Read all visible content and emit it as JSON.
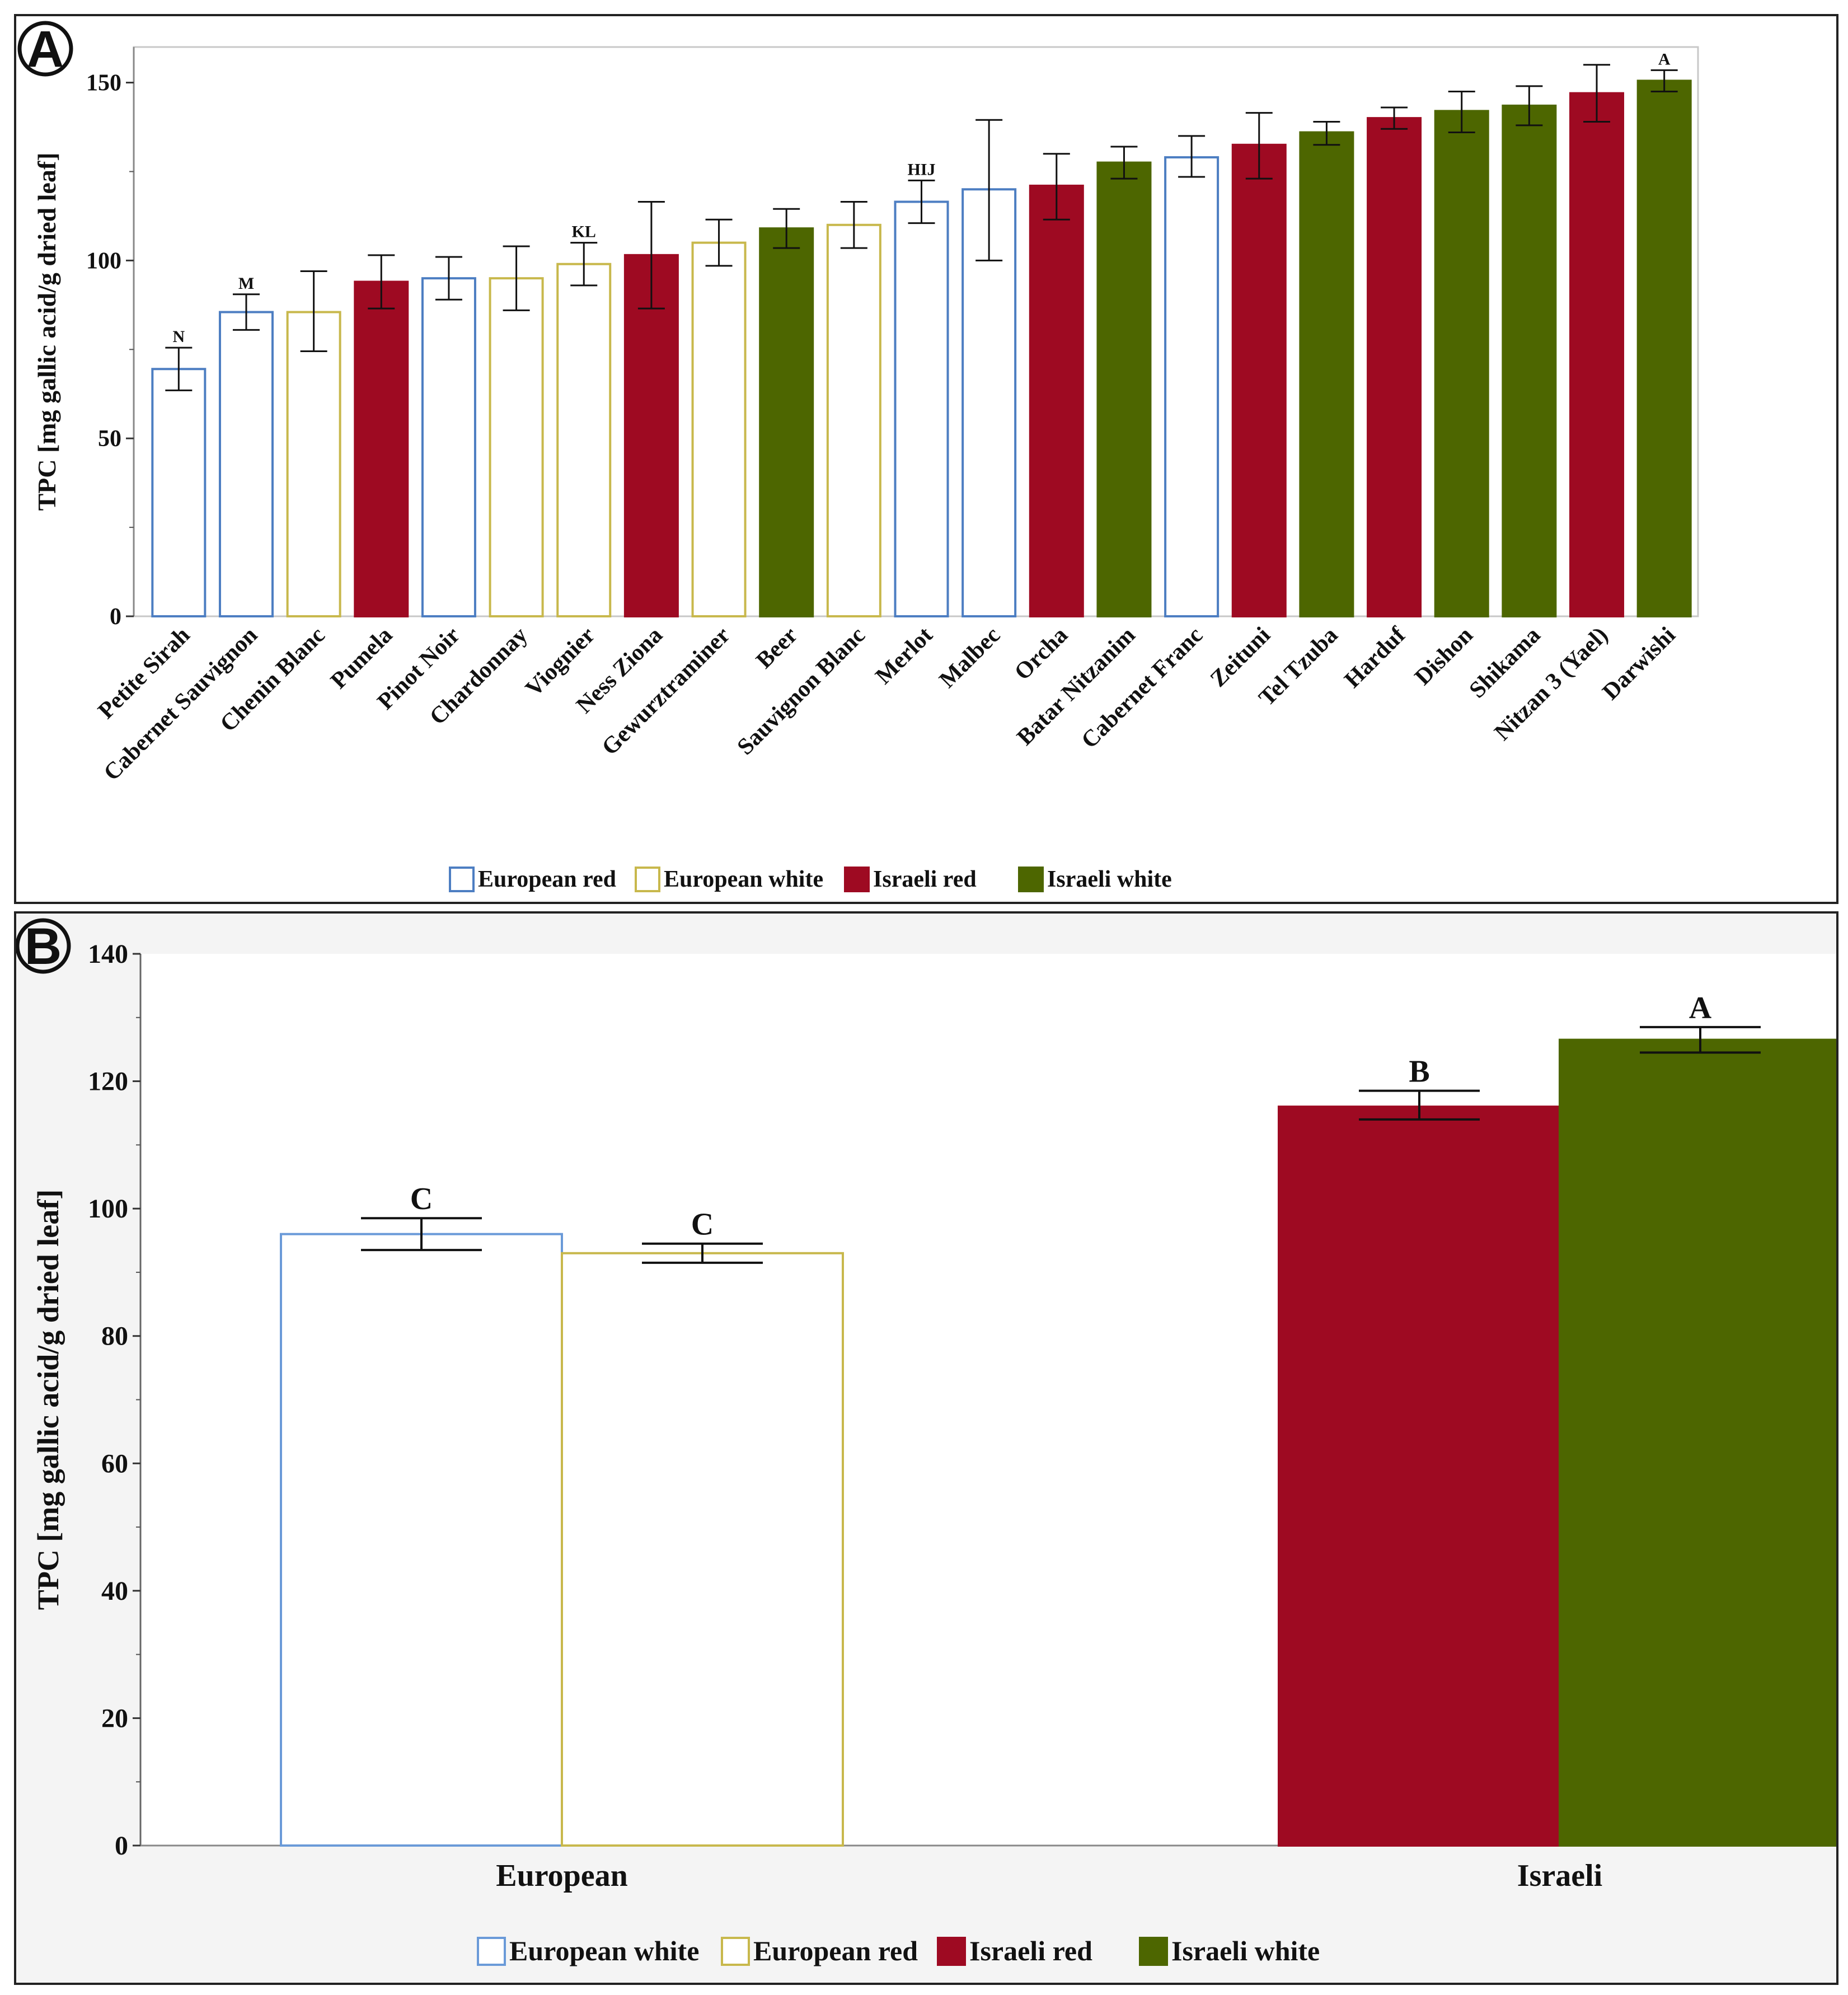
{
  "colors": {
    "european_red": "#4d7ec2",
    "european_white": "#c8b84c",
    "israeli_red": "#9e0a22",
    "israeli_white": "#4d6600",
    "panel_b_european_white": "#6a9ad8",
    "panel_b_european_red": "#c8b84c"
  },
  "panel_labels": {
    "a": "A",
    "b": "B"
  },
  "chart_data": [
    {
      "panel": "A",
      "type": "bar",
      "ylabel": "TPC [mg gallic acid/g dried leaf]",
      "ylim": [
        0,
        160
      ],
      "yticks": [
        0,
        50,
        100,
        150
      ],
      "legend": {
        "placement": "bottom",
        "items": [
          {
            "key": "european_red",
            "label": "European red",
            "filled": false
          },
          {
            "key": "european_white",
            "label": "European white",
            "filled": false
          },
          {
            "key": "israeli_red",
            "label": "Israeli red",
            "filled": true
          },
          {
            "key": "israeli_white",
            "label": "Israeli white",
            "filled": true
          }
        ]
      },
      "bars": [
        {
          "category": "Petite Sirah",
          "group": "european_red",
          "value": 69.5,
          "low": 63.5,
          "high": 75.5,
          "sig": "N"
        },
        {
          "category": "Cabernet Sauvignon",
          "group": "european_red",
          "value": 85.5,
          "low": 80.5,
          "high": 90.5,
          "sig": "M"
        },
        {
          "category": "Chenin Blanc",
          "group": "european_white",
          "value": 85.5,
          "low": 74.5,
          "high": 97,
          "sig": ""
        },
        {
          "category": "Pumela",
          "group": "israeli_red",
          "value": 94,
          "low": 86.5,
          "high": 101.5,
          "sig": ""
        },
        {
          "category": "Pinot Noir",
          "group": "european_red",
          "value": 95,
          "low": 89,
          "high": 101,
          "sig": ""
        },
        {
          "category": "Chardonnay",
          "group": "european_white",
          "value": 95,
          "low": 86,
          "high": 104,
          "sig": ""
        },
        {
          "category": "Viognier",
          "group": "european_white",
          "value": 99,
          "low": 93,
          "high": 105,
          "sig": "KL"
        },
        {
          "category": "Ness Ziona",
          "group": "israeli_red",
          "value": 101.5,
          "low": 86.5,
          "high": 116.5,
          "sig": ""
        },
        {
          "category": "Gewurztraminer",
          "group": "european_white",
          "value": 105,
          "low": 98.5,
          "high": 111.5,
          "sig": ""
        },
        {
          "category": "Beer",
          "group": "israeli_white",
          "value": 109,
          "low": 103.5,
          "high": 114.5,
          "sig": ""
        },
        {
          "category": "Sauvignon Blanc",
          "group": "european_white",
          "value": 110,
          "low": 103.5,
          "high": 116.5,
          "sig": ""
        },
        {
          "category": "Merlot",
          "group": "european_red",
          "value": 116.5,
          "low": 110.5,
          "high": 122.5,
          "sig": "HIJ"
        },
        {
          "category": "Malbec",
          "group": "european_red",
          "value": 120,
          "low": 100,
          "high": 139.5,
          "sig": ""
        },
        {
          "category": "Orcha",
          "group": "israeli_red",
          "value": 121,
          "low": 111.5,
          "high": 130,
          "sig": ""
        },
        {
          "category": "Batar Nitzanim",
          "group": "israeli_white",
          "value": 127.5,
          "low": 123,
          "high": 132,
          "sig": ""
        },
        {
          "category": "Cabernet Franc",
          "group": "european_red",
          "value": 129,
          "low": 123.5,
          "high": 135,
          "sig": ""
        },
        {
          "category": "Zeituni",
          "group": "israeli_red",
          "value": 132.5,
          "low": 123,
          "high": 141.5,
          "sig": ""
        },
        {
          "category": "Tel Tzuba",
          "group": "israeli_white",
          "value": 136,
          "low": 132.5,
          "high": 139,
          "sig": ""
        },
        {
          "category": "Harduf",
          "group": "israeli_red",
          "value": 140,
          "low": 137,
          "high": 143,
          "sig": ""
        },
        {
          "category": "Dishon",
          "group": "israeli_white",
          "value": 142,
          "low": 136,
          "high": 147.5,
          "sig": ""
        },
        {
          "category": "Shikama",
          "group": "israeli_white",
          "value": 143.5,
          "low": 138,
          "high": 149,
          "sig": ""
        },
        {
          "category": "Nitzan 3 (Yael)",
          "group": "israeli_red",
          "value": 147,
          "low": 139,
          "high": 155,
          "sig": ""
        },
        {
          "category": "Darwishi",
          "group": "israeli_white",
          "value": 150.5,
          "low": 147.5,
          "high": 153.5,
          "sig": "A"
        }
      ]
    },
    {
      "panel": "B",
      "type": "bar",
      "ylabel": "TPC [mg gallic acid/g dried leaf]",
      "ylim": [
        0,
        140
      ],
      "yticks": [
        0,
        20,
        40,
        60,
        80,
        100,
        120,
        140
      ],
      "categories": [
        "European",
        "Israeli"
      ],
      "legend": {
        "placement": "bottom",
        "items": [
          {
            "key": "panel_b_european_white",
            "label": "European white",
            "filled": false
          },
          {
            "key": "panel_b_european_red",
            "label": "European red",
            "filled": false
          },
          {
            "key": "israeli_red",
            "label": "Israeli red",
            "filled": true
          },
          {
            "key": "israeli_white",
            "label": "Israeli white",
            "filled": true
          }
        ]
      },
      "series": [
        {
          "name": "European white",
          "color_key": "panel_b_european_white",
          "filled": false,
          "category": "European",
          "value": 96,
          "low": 93.5,
          "high": 98.5,
          "sig": "C"
        },
        {
          "name": "European red",
          "color_key": "panel_b_european_red",
          "filled": false,
          "category": "European",
          "value": 93,
          "low": 91.5,
          "high": 94.5,
          "sig": "C"
        },
        {
          "name": "Israeli red",
          "color_key": "israeli_red",
          "filled": true,
          "category": "Israeli",
          "value": 116,
          "low": 114,
          "high": 118.5,
          "sig": "B"
        },
        {
          "name": "Israeli white",
          "color_key": "israeli_white",
          "filled": true,
          "category": "Israeli",
          "value": 126.5,
          "low": 124.5,
          "high": 128.5,
          "sig": "A"
        }
      ]
    }
  ]
}
